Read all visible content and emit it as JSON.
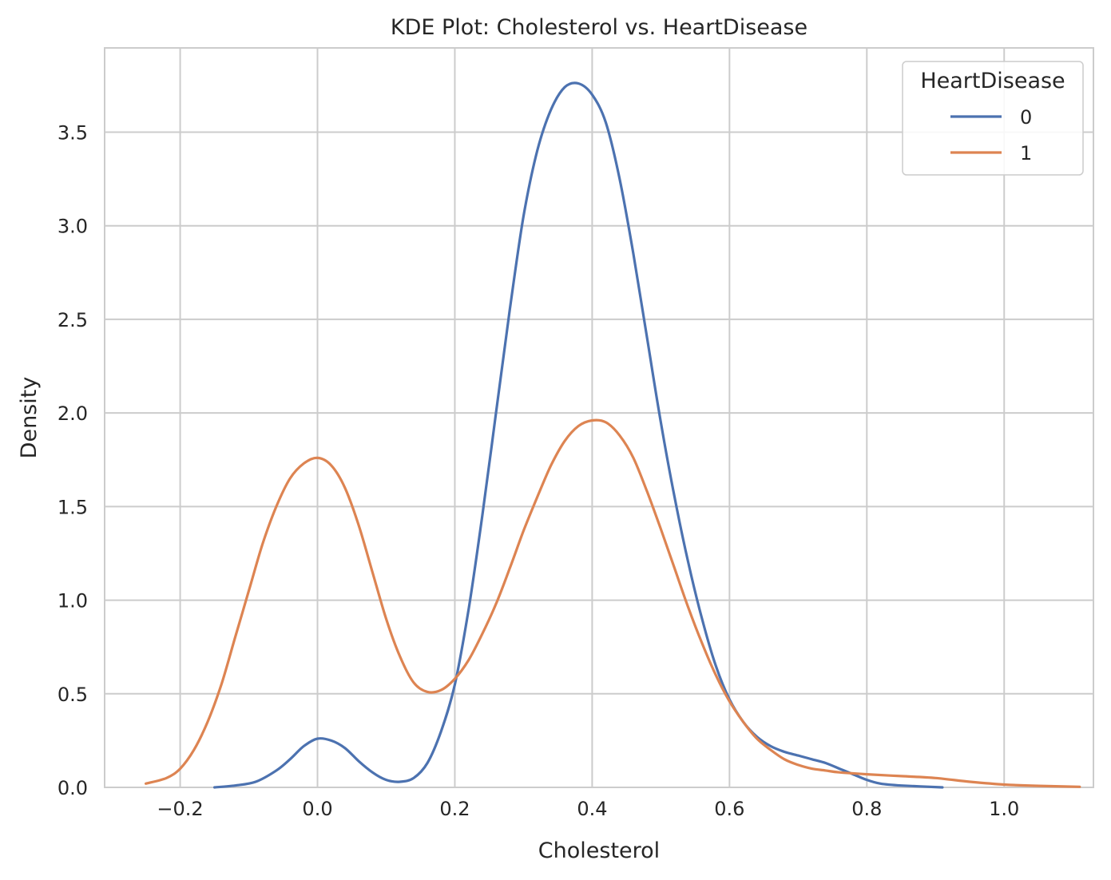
{
  "chart_data": {
    "type": "line",
    "title": "KDE Plot: Cholesterol vs. HeartDisease",
    "xlabel": "Cholesterol",
    "ylabel": "Density",
    "xlim": [
      -0.31,
      1.13
    ],
    "ylim": [
      0,
      3.95
    ],
    "xticks": [
      -0.2,
      0.0,
      0.2,
      0.4,
      0.6,
      0.8,
      1.0
    ],
    "xtick_labels": [
      "−0.2",
      "0.0",
      "0.2",
      "0.4",
      "0.6",
      "0.8",
      "1.0"
    ],
    "yticks": [
      0.0,
      0.5,
      1.0,
      1.5,
      2.0,
      2.5,
      3.0,
      3.5
    ],
    "ytick_labels": [
      "0.0",
      "0.5",
      "1.0",
      "1.5",
      "2.0",
      "2.5",
      "3.0",
      "3.5"
    ],
    "grid": true,
    "legend": {
      "title": "HeartDisease",
      "placement": "top-right"
    },
    "series": [
      {
        "name": "0",
        "color": "#4c72b0",
        "points": [
          [
            -0.15,
            0.0
          ],
          [
            -0.12,
            0.01
          ],
          [
            -0.09,
            0.03
          ],
          [
            -0.06,
            0.09
          ],
          [
            -0.04,
            0.15
          ],
          [
            -0.02,
            0.22
          ],
          [
            0.0,
            0.26
          ],
          [
            0.02,
            0.25
          ],
          [
            0.04,
            0.21
          ],
          [
            0.06,
            0.14
          ],
          [
            0.08,
            0.08
          ],
          [
            0.1,
            0.04
          ],
          [
            0.12,
            0.03
          ],
          [
            0.14,
            0.05
          ],
          [
            0.16,
            0.13
          ],
          [
            0.18,
            0.3
          ],
          [
            0.2,
            0.55
          ],
          [
            0.22,
            0.95
          ],
          [
            0.24,
            1.45
          ],
          [
            0.26,
            2.0
          ],
          [
            0.28,
            2.55
          ],
          [
            0.3,
            3.05
          ],
          [
            0.32,
            3.4
          ],
          [
            0.34,
            3.62
          ],
          [
            0.36,
            3.74
          ],
          [
            0.38,
            3.76
          ],
          [
            0.4,
            3.7
          ],
          [
            0.42,
            3.55
          ],
          [
            0.44,
            3.25
          ],
          [
            0.46,
            2.85
          ],
          [
            0.48,
            2.4
          ],
          [
            0.5,
            1.95
          ],
          [
            0.52,
            1.55
          ],
          [
            0.54,
            1.2
          ],
          [
            0.56,
            0.9
          ],
          [
            0.58,
            0.65
          ],
          [
            0.6,
            0.47
          ],
          [
            0.62,
            0.35
          ],
          [
            0.64,
            0.27
          ],
          [
            0.66,
            0.22
          ],
          [
            0.68,
            0.19
          ],
          [
            0.7,
            0.17
          ],
          [
            0.72,
            0.15
          ],
          [
            0.74,
            0.13
          ],
          [
            0.76,
            0.1
          ],
          [
            0.78,
            0.07
          ],
          [
            0.8,
            0.04
          ],
          [
            0.82,
            0.02
          ],
          [
            0.85,
            0.01
          ],
          [
            0.91,
            0.0
          ]
        ]
      },
      {
        "name": "1",
        "color": "#dd8452",
        "points": [
          [
            -0.25,
            0.02
          ],
          [
            -0.22,
            0.05
          ],
          [
            -0.2,
            0.1
          ],
          [
            -0.18,
            0.2
          ],
          [
            -0.16,
            0.35
          ],
          [
            -0.14,
            0.55
          ],
          [
            -0.12,
            0.8
          ],
          [
            -0.1,
            1.05
          ],
          [
            -0.08,
            1.3
          ],
          [
            -0.06,
            1.5
          ],
          [
            -0.04,
            1.65
          ],
          [
            -0.02,
            1.73
          ],
          [
            0.0,
            1.76
          ],
          [
            0.02,
            1.72
          ],
          [
            0.04,
            1.6
          ],
          [
            0.06,
            1.4
          ],
          [
            0.08,
            1.15
          ],
          [
            0.1,
            0.9
          ],
          [
            0.12,
            0.7
          ],
          [
            0.14,
            0.56
          ],
          [
            0.16,
            0.51
          ],
          [
            0.18,
            0.52
          ],
          [
            0.2,
            0.58
          ],
          [
            0.22,
            0.68
          ],
          [
            0.24,
            0.82
          ],
          [
            0.26,
            0.98
          ],
          [
            0.28,
            1.17
          ],
          [
            0.3,
            1.37
          ],
          [
            0.32,
            1.55
          ],
          [
            0.34,
            1.72
          ],
          [
            0.36,
            1.85
          ],
          [
            0.38,
            1.93
          ],
          [
            0.4,
            1.96
          ],
          [
            0.42,
            1.95
          ],
          [
            0.44,
            1.88
          ],
          [
            0.46,
            1.76
          ],
          [
            0.48,
            1.58
          ],
          [
            0.5,
            1.38
          ],
          [
            0.52,
            1.17
          ],
          [
            0.54,
            0.96
          ],
          [
            0.56,
            0.77
          ],
          [
            0.58,
            0.6
          ],
          [
            0.6,
            0.46
          ],
          [
            0.62,
            0.35
          ],
          [
            0.64,
            0.26
          ],
          [
            0.66,
            0.2
          ],
          [
            0.68,
            0.15
          ],
          [
            0.7,
            0.12
          ],
          [
            0.72,
            0.1
          ],
          [
            0.74,
            0.09
          ],
          [
            0.76,
            0.08
          ],
          [
            0.8,
            0.07
          ],
          [
            0.85,
            0.06
          ],
          [
            0.9,
            0.05
          ],
          [
            0.95,
            0.03
          ],
          [
            1.0,
            0.015
          ],
          [
            1.05,
            0.008
          ],
          [
            1.11,
            0.003
          ]
        ]
      }
    ]
  }
}
